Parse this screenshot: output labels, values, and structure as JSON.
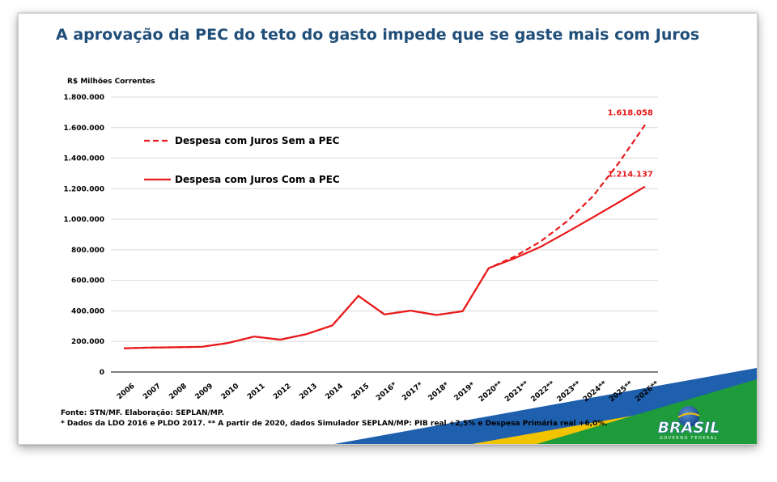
{
  "title": "A aprovação da PEC do teto do gasto impede que se gaste mais com Juros",
  "footer": {
    "source": "Fonte: STN/MF.    Elaboração: SEPLAN/MP.",
    "note": "* Dados da LDO 2016 e PLDO 2017. ** A partir de 2020, dados Simulador SEPLAN/MP: PIB real +2,5% e Despesa Primária real +6,0%."
  },
  "logo": {
    "text": "BRASIL",
    "subtext": "GOVERNO FEDERAL"
  },
  "colors": {
    "title": "#1f4e79",
    "series": "#e8191a",
    "green": "#1e9b3a",
    "yellow": "#f2c300",
    "blue": "#1e5fae"
  },
  "chart_data": {
    "type": "line",
    "ylabel": "R$ Milhões Correntes",
    "ylim": [
      0,
      1800000
    ],
    "yticks": [
      {
        "value": 0,
        "label": "0"
      },
      {
        "value": 200000,
        "label": "200.000"
      },
      {
        "value": 400000,
        "label": "400.000"
      },
      {
        "value": 600000,
        "label": "600.000"
      },
      {
        "value": 800000,
        "label": "800.000"
      },
      {
        "value": 1000000,
        "label": "1.000.000"
      },
      {
        "value": 1200000,
        "label": "1.200.000"
      },
      {
        "value": 1400000,
        "label": "1.400.000"
      },
      {
        "value": 1600000,
        "label": "1.600.000"
      },
      {
        "value": 1800000,
        "label": "1.800.000"
      }
    ],
    "categories": [
      "2006",
      "2007",
      "2008",
      "2009",
      "2010",
      "2011",
      "2012",
      "2013",
      "2014",
      "2015",
      "2016*",
      "2017*",
      "2018*",
      "2019*",
      "2020**",
      "2021**",
      "2022**",
      "2023**",
      "2024**",
      "2025**",
      "2026**"
    ],
    "legend_position": "upper-left",
    "series": [
      {
        "name": "Despesa com Juros Sem a PEC",
        "style": "dashed",
        "values": [
          155000,
          160000,
          162000,
          165000,
          190000,
          232000,
          212000,
          248000,
          305000,
          498000,
          377000,
          402000,
          373000,
          398000,
          680000,
          756000,
          855000,
          985000,
          1150000,
          1370000,
          1618058
        ],
        "end_label": "1.618.058"
      },
      {
        "name": "Despesa com Juros Com a PEC",
        "style": "solid",
        "values": [
          155000,
          160000,
          162000,
          165000,
          190000,
          232000,
          212000,
          248000,
          305000,
          498000,
          377000,
          402000,
          373000,
          398000,
          680000,
          745000,
          820000,
          915000,
          1012000,
          1112000,
          1214137
        ],
        "end_label": "1.214.137"
      }
    ]
  }
}
